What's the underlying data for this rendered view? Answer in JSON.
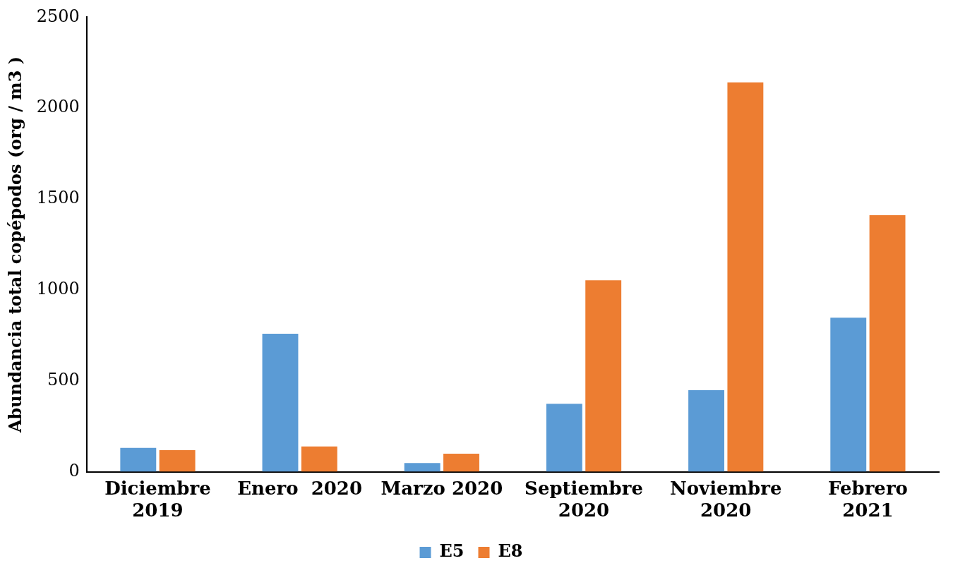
{
  "chart_data": {
    "type": "bar",
    "ylabel": "Abundancia total copépodos (org / m3 )",
    "categories": [
      "Diciembre\n2019",
      "Enero  2020",
      "Marzo 2020",
      "Septiembre\n2020",
      "Noviembre\n2020",
      "Febrero\n2021"
    ],
    "series": [
      {
        "name": "E5",
        "color": "#5b9bd5",
        "values": [
          131,
          759,
          48,
          374,
          449,
          847
        ]
      },
      {
        "name": "E8",
        "color": "#ed7d31",
        "values": [
          119,
          139,
          99,
          1053,
          2142,
          1411
        ]
      }
    ],
    "ylim": [
      0,
      2500
    ],
    "yticks": [
      0,
      500,
      1000,
      1500,
      2000,
      2500
    ],
    "grid": false,
    "legend": "bottom"
  }
}
